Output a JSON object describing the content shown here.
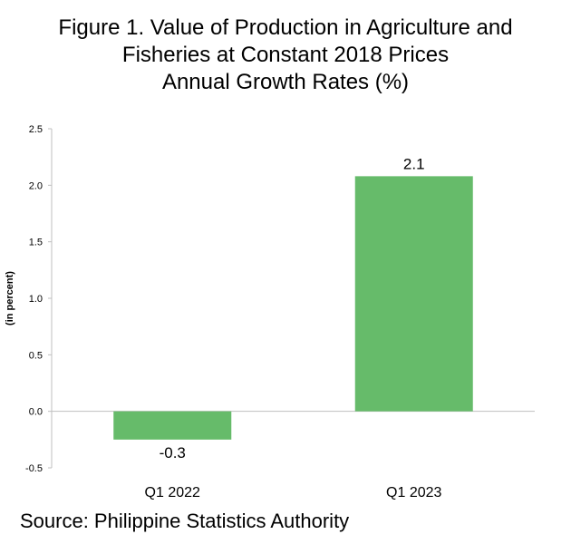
{
  "title_lines": [
    "Figure 1. Value of Production in Agriculture and",
    "Fisheries at Constant 2018 Prices",
    "Annual Growth Rates (%)"
  ],
  "source": "Source: Philippine Statistics Authority",
  "colors": {
    "bar": "#66bb6a",
    "axis": "#bfbfbf"
  },
  "chart_data": {
    "type": "bar",
    "title": "Figure 1. Value of Production in Agriculture and Fisheries at Constant 2018 Prices Annual Growth Rates (%)",
    "categories": [
      "Q1 2022",
      "Q1 2023"
    ],
    "values": [
      -0.25,
      2.08
    ],
    "data_labels": [
      "-0.3",
      "2.1"
    ],
    "xlabel": "",
    "ylabel": "(in percent)",
    "ylim": [
      -0.5,
      2.5
    ],
    "yticks": [
      -0.5,
      0.0,
      0.5,
      1.0,
      1.5,
      2.0,
      2.5
    ],
    "ytick_labels": [
      "-0.5",
      "0.0",
      "0.5",
      "1.0",
      "1.5",
      "2.0",
      "2.5"
    ],
    "grid": false,
    "legend": "none"
  }
}
